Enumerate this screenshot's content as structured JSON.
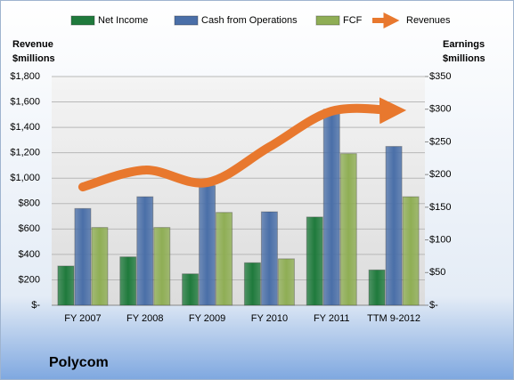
{
  "chart_data": {
    "type": "bar",
    "title": "Polycom",
    "categories": [
      "FY 2007",
      "FY 2008",
      "FY 2009",
      "FY 2010",
      "FY 2011",
      "TTM 9-2012"
    ],
    "series": [
      {
        "name": "Net Income",
        "color": "#1f7a3c",
        "axis": "y2",
        "values": [
          60,
          74,
          48,
          65,
          135,
          54
        ]
      },
      {
        "name": "Cash from Operations",
        "color": "#4a6fa8",
        "axis": "y2",
        "values": [
          148,
          166,
          183,
          143,
          300,
          243
        ]
      },
      {
        "name": "FCF",
        "color": "#8fae55",
        "axis": "y2",
        "values": [
          119,
          119,
          142,
          71,
          232,
          166
        ]
      },
      {
        "name": "Revenues",
        "color": "#e8782e",
        "type": "line",
        "values": [
          931,
          1064,
          966,
          1246,
          1527,
          1533
        ]
      }
    ],
    "ylabel": [
      "Revenue",
      "$millions"
    ],
    "y2label": [
      "Earnings",
      "$millions"
    ],
    "ylim": [
      0,
      1800
    ],
    "yticks": [
      {
        "value": 0,
        "label": "$-"
      },
      {
        "value": 200,
        "label": "$200"
      },
      {
        "value": 400,
        "label": "$400"
      },
      {
        "value": 600,
        "label": "$600"
      },
      {
        "value": 800,
        "label": "$800"
      },
      {
        "value": 1000,
        "label": "$1,000"
      },
      {
        "value": 1200,
        "label": "$1,200"
      },
      {
        "value": 1400,
        "label": "$1,400"
      },
      {
        "value": 1600,
        "label": "$1,600"
      },
      {
        "value": 1800,
        "label": "$1,800"
      }
    ],
    "y2lim": [
      0,
      350
    ],
    "y2ticks": [
      {
        "value": 0,
        "label": "$-"
      },
      {
        "value": 50,
        "label": "$50"
      },
      {
        "value": 100,
        "label": "$100"
      },
      {
        "value": 150,
        "label": "$150"
      },
      {
        "value": 200,
        "label": "$200"
      },
      {
        "value": 250,
        "label": "$250"
      },
      {
        "value": 300,
        "label": "$300"
      },
      {
        "value": 350,
        "label": "$350"
      }
    ],
    "grid": true
  }
}
